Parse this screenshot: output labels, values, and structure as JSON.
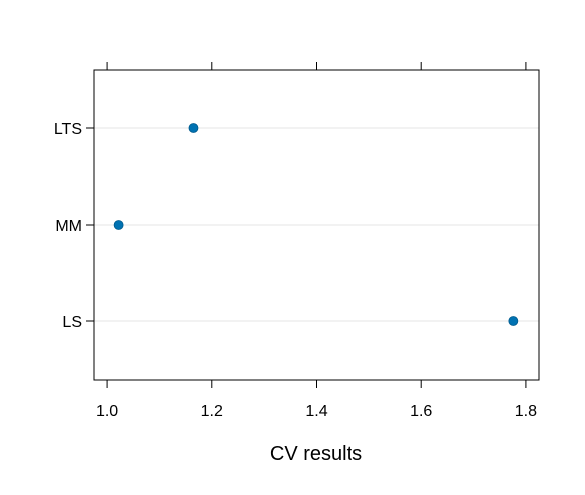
{
  "chart_data": {
    "type": "scatter",
    "title": "",
    "xlabel": "CV results",
    "ylabel": "",
    "categories": [
      "LTS",
      "MM",
      "LS"
    ],
    "values": [
      1.165,
      1.022,
      1.776
    ],
    "xlim": [
      0.975,
      1.825
    ],
    "xticks": [
      1.0,
      1.2,
      1.4,
      1.6,
      1.8
    ],
    "xtick_labels": [
      "1.0",
      "1.2",
      "1.4",
      "1.6",
      "1.8"
    ],
    "grid": "horizontal reference lines",
    "marker_color": "#0072B2",
    "grid_color": "#E6E6E6"
  }
}
